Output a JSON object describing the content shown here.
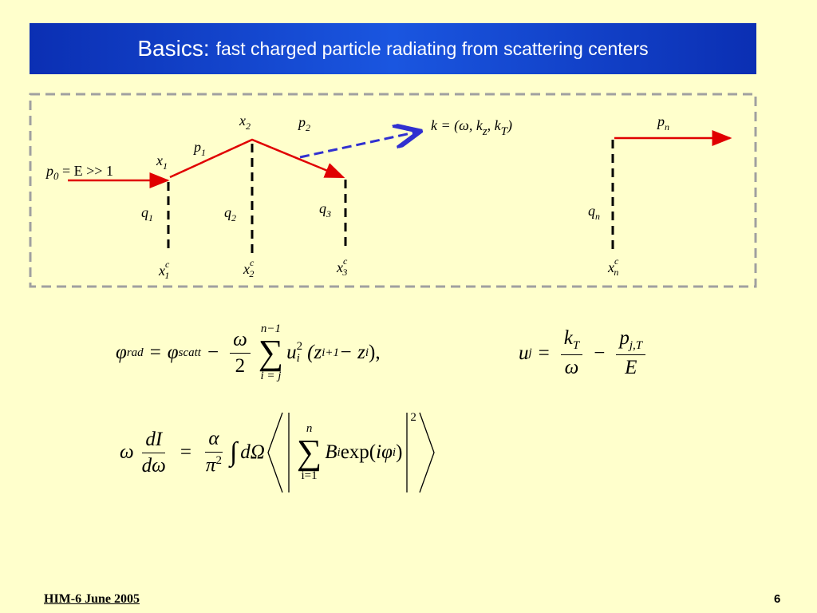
{
  "header": {
    "title_lead": "Basics:",
    "title_rest": "fast charged particle radiating from scattering centers"
  },
  "diagram": {
    "p0": {
      "base": "p",
      "sub": "0",
      "rest": " = E >> 1"
    },
    "x1": {
      "base": "x",
      "sub": "1"
    },
    "p1": {
      "base": "p",
      "sub": "1"
    },
    "x2": {
      "base": "x",
      "sub": "2"
    },
    "p2": {
      "base": "p",
      "sub": "2"
    },
    "k": {
      "a": "k = (ω, k",
      "sub1": "z",
      "b": ", k",
      "sub2": "T",
      "c": ")"
    },
    "pn": {
      "base": "p",
      "sub": "n"
    },
    "q1": {
      "base": "q",
      "sub": "1"
    },
    "q2": {
      "base": "q",
      "sub": "2"
    },
    "q3": {
      "base": "q",
      "sub": "3"
    },
    "qn": {
      "base": "q",
      "sub": "n"
    },
    "x1c": {
      "base": "x",
      "sup": "c",
      "sub": "1"
    },
    "x2c": {
      "base": "x",
      "sup": "c",
      "sub": "2"
    },
    "x3c": {
      "base": "x",
      "sup": "c",
      "sub": "3"
    },
    "xnc": {
      "base": "x",
      "sup": "c",
      "sub": "n"
    }
  },
  "equations": {
    "phase": {
      "lhs": "φ",
      "lhs_sub": "rad",
      "eq": "=",
      "phi": "φ",
      "phi_sub": "scatt",
      "minus": "−",
      "frac_num": "ω",
      "frac_den": "2",
      "sum_top": "n−1",
      "sum": "∑",
      "sum_bottom": "i = j",
      "u": "u",
      "u_sub": "i",
      "u_sup": "2",
      "open": "(z",
      "z1_sub": "i+1",
      "minus2": " − z",
      "z2_sub": "i",
      "close": "),"
    },
    "u": {
      "lhs": "u",
      "lhs_sub": "j",
      "eq": "=",
      "k": "k",
      "k_sub": "T",
      "omega": "ω",
      "minus": "−",
      "p": "p",
      "p_sub": "j,T",
      "E": "E"
    },
    "spectrum": {
      "omega": "ω",
      "num1": "dI",
      "den1": "dω",
      "eq": "=",
      "num2": "α",
      "den2": "π",
      "den2_sup": "2",
      "integral": "∫",
      "dOmega": "dΩ",
      "sum_top": "n",
      "sum": "∑",
      "sum_bottom": "i=1",
      "B": "B",
      "B_sub": "i",
      "exp": " exp(",
      "i": "i",
      "phi": "φ",
      "phi_sub": "i",
      "close": ")",
      "abs_sup": "2"
    }
  },
  "footer": {
    "left": "HIM-6 June 2005",
    "page": "6"
  }
}
